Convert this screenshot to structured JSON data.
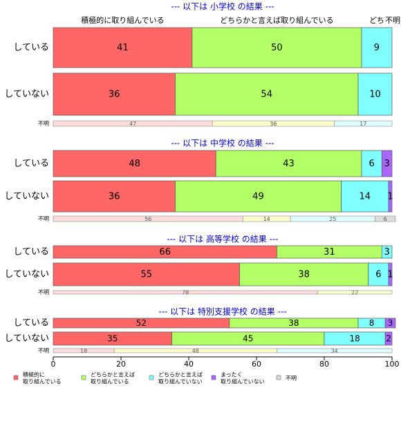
{
  "chart_data": {
    "type": "stacked-bar",
    "xlim": [
      0,
      100
    ],
    "xticks": [
      0,
      20,
      40,
      60,
      80,
      100
    ],
    "legend": [
      {
        "name": [
          "積極的に",
          "取り組んでいる"
        ],
        "color": "#ff6666"
      },
      {
        "name": [
          "どちらかと言えば",
          "取り組んでいる"
        ],
        "color": "#b3ff66"
      },
      {
        "name": [
          "どちらかと言えば",
          "取り組んでいない"
        ],
        "color": "#80ffff"
      },
      {
        "name": [
          "まったく",
          "取り組んでいない"
        ],
        "color": "#aa66ff"
      },
      {
        "name": [
          "不明"
        ],
        "color": "#d9d9d9"
      }
    ],
    "unknown_colors": [
      "#ffdddd",
      "#ffffcc",
      "#ddffff",
      "#dddddd"
    ],
    "panels": [
      {
        "title": "--- 以下は 小学校 の結果 ---",
        "headers": [
          "積極的に取り組んでいる",
          "どちらかと言えば取り組んでいる",
          "どち",
          "不明"
        ],
        "rows": [
          {
            "label": "している",
            "values": [
              41,
              50,
              9
            ]
          },
          {
            "label": "していない",
            "values": [
              36,
              54,
              10
            ]
          },
          {
            "label": "不明",
            "values": [
              47,
              36,
              17
            ]
          }
        ]
      },
      {
        "title": "--- 以下は 中学校 の結果 ---",
        "rows": [
          {
            "label": "している",
            "values": [
              48,
              43,
              6,
              3
            ]
          },
          {
            "label": "していない",
            "values": [
              36,
              49,
              14,
              1
            ]
          },
          {
            "label": "不明",
            "values": [
              56,
              14,
              25,
              6
            ]
          }
        ]
      },
      {
        "title": "--- 以下は 高等学校 の結果 ---",
        "rows": [
          {
            "label": "している",
            "values": [
              66,
              31,
              3
            ]
          },
          {
            "label": "していない",
            "values": [
              55,
              38,
              6,
              1
            ]
          },
          {
            "label": "不明",
            "values": [
              78,
              22
            ]
          }
        ]
      },
      {
        "title": "--- 以下は 特別支援学校 の結果 ---",
        "rows": [
          {
            "label": "している",
            "values": [
              52,
              38,
              8,
              3
            ]
          },
          {
            "label": "していない",
            "values": [
              35,
              45,
              18,
              2
            ]
          },
          {
            "label": "不明",
            "values": [
              18,
              48,
              34
            ]
          }
        ]
      }
    ]
  }
}
